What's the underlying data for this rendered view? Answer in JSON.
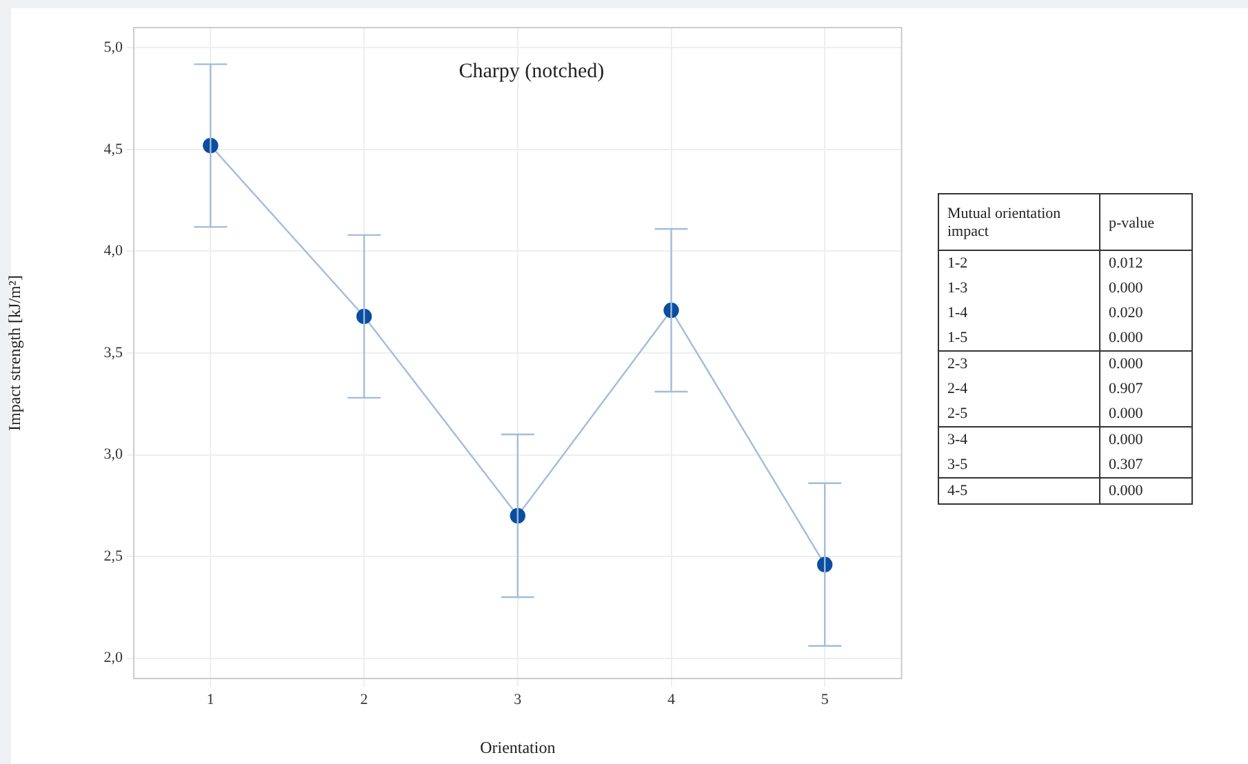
{
  "chart_data": [
    {
      "type": "line",
      "title": "Charpy (notched)",
      "xlabel": "Orientation",
      "ylabel": "Impact strength [kJ/m²]",
      "categories": [
        "1",
        "2",
        "3",
        "4",
        "5"
      ],
      "series": [
        {
          "color": "#0a4ea0",
          "values": [
            4.52,
            3.68,
            2.7,
            3.71,
            2.46
          ],
          "errors": [
            0.4,
            0.4,
            0.4,
            0.4,
            0.4
          ]
        }
      ],
      "ylim": [
        1.9,
        5.1
      ],
      "yticks": [
        {
          "value": 2,
          "label": "2,0"
        },
        {
          "value": 2.5,
          "label": "2,5"
        },
        {
          "value": 3,
          "label": "3,0"
        },
        {
          "value": 3.5,
          "label": "3,5"
        },
        {
          "value": 4,
          "label": "4,0"
        },
        {
          "value": 4.5,
          "label": "4,5"
        },
        {
          "value": 5,
          "label": "5,0"
        }
      ],
      "grid": true,
      "legend": false,
      "marker": "circle",
      "line_style": "solid"
    },
    {
      "type": "other",
      "annotations": [
        "Mutual orientation impact",
        "p-value",
        "1-2",
        "0.012",
        "1-3",
        "0.000",
        "1-4",
        "0.020",
        "1-5",
        "0.000",
        "2-3",
        "0.000",
        "2-4",
        "0.907",
        "2-5",
        "0.000",
        "3-4",
        "0.000",
        "3-5",
        "0.307",
        "4-5",
        "0.000"
      ]
    }
  ]
}
